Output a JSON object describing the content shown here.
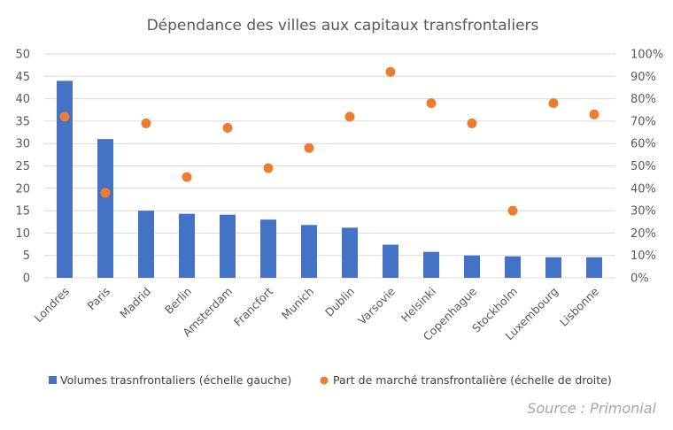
{
  "chart_data": {
    "type": "bar",
    "title": "Dépendance des villes aux capitaux transfrontaliers",
    "categories": [
      "Londres",
      "Paris",
      "Madrid",
      "Berlin",
      "Amsterdam",
      "Francfort",
      "Munich",
      "Dublin",
      "Varsovie",
      "Helsinki",
      "Copenhague",
      "Stockholm",
      "Luxembourg",
      "Lisbonne"
    ],
    "series": [
      {
        "name": "Volumes trasnfrontaliers (échelle gauche)",
        "type": "bar",
        "axis": "left",
        "color": "#4472C4",
        "values": [
          44,
          31,
          15,
          14.3,
          14.1,
          13,
          11.8,
          11.2,
          7.4,
          5.8,
          5,
          4.8,
          4.6,
          4.6
        ]
      },
      {
        "name": "Part de marché transfrontalière (échelle de droite)",
        "type": "scatter",
        "axis": "right",
        "color": "#ED7D31",
        "values": [
          0.72,
          0.38,
          0.69,
          0.45,
          0.67,
          0.49,
          0.58,
          0.72,
          0.92,
          0.78,
          0.69,
          0.3,
          0.78,
          0.73
        ]
      }
    ],
    "y_left": {
      "ylim": [
        0,
        50
      ],
      "ticks": [
        0,
        5,
        10,
        15,
        20,
        25,
        30,
        35,
        40,
        45,
        50
      ],
      "tick_labels": [
        "0",
        "5",
        "10",
        "15",
        "20",
        "25",
        "30",
        "35",
        "40",
        "45",
        "50"
      ]
    },
    "y_right": {
      "ylim": [
        0,
        1
      ],
      "ticks": [
        0,
        0.1,
        0.2,
        0.3,
        0.4,
        0.5,
        0.6,
        0.7,
        0.8,
        0.9,
        1.0
      ],
      "tick_labels": [
        "0%",
        "10%",
        "20%",
        "30%",
        "40%",
        "50%",
        "60%",
        "70%",
        "80%",
        "90%",
        "100%"
      ]
    },
    "grid": true,
    "legend": "bottom",
    "xlabel": "",
    "ylabel": ""
  },
  "source": "Source :  Primonial"
}
